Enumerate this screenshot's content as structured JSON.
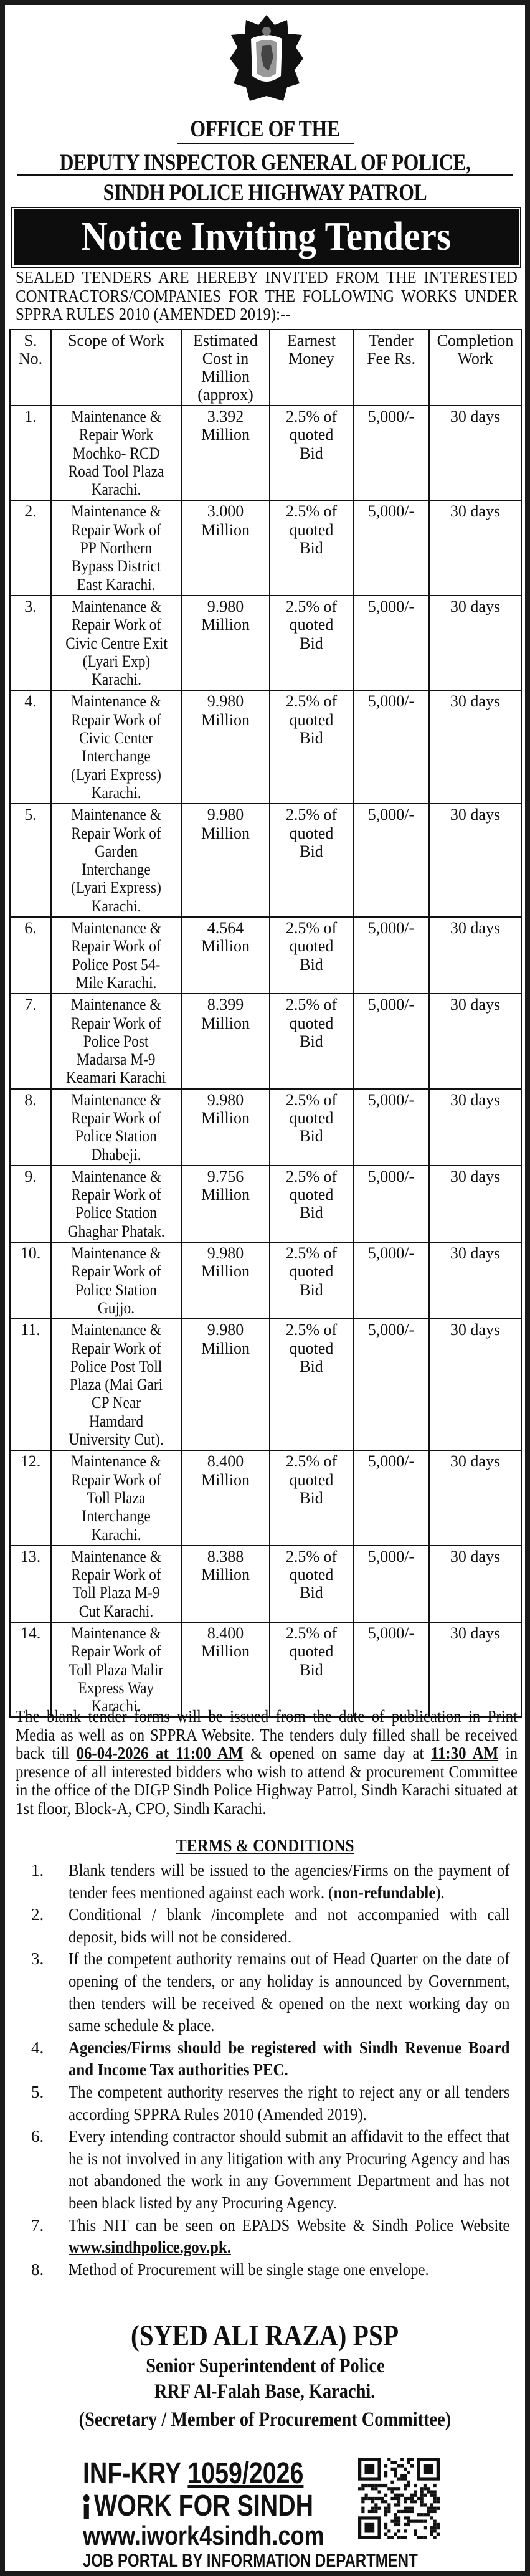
{
  "header": {
    "line1": "OFFICE OF THE",
    "line2": "DEPUTY INSPECTOR GENERAL OF POLICE,",
    "line3": "SINDH POLICE HIGHWAY PATROL",
    "banner": "Notice Inviting Tenders",
    "logo_text": "SINDH POLICE HIGHWAY"
  },
  "intro": "SEALED TENDERS ARE HEREBY INVITED FROM THE INTERESTED CONTRACTORS/COMPANIES FOR THE FOLLOWING WORKS UNDER SPPRA RULES 2010 (AMENDED 2019):--",
  "table": {
    "headers": [
      "S.\nNo.",
      "Scope of Work",
      "Estimated\nCost in\nMillion\n(approx)",
      "Earnest\nMoney",
      "Tender\nFee Rs.",
      "Completion\nWork"
    ],
    "rows": [
      {
        "no": "1.",
        "scope": "Maintenance &\nRepair Work\nMochko- RCD\nRoad Tool Plaza\nKarachi.",
        "cost": "3.392\nMillion",
        "earnest": "2.5% of\nquoted\nBid",
        "fee": "5,000/-",
        "completion": "30 days"
      },
      {
        "no": "2.",
        "scope": "Maintenance &\nRepair Work of\nPP Northern\nBypass District\nEast Karachi.",
        "cost": "3.000\nMillion",
        "earnest": "2.5% of\nquoted\nBid",
        "fee": "5,000/-",
        "completion": "30 days"
      },
      {
        "no": "3.",
        "scope": "Maintenance &\nRepair Work of\nCivic Centre Exit\n(Lyari Exp)\nKarachi.",
        "cost": "9.980\nMillion",
        "earnest": "2.5% of\nquoted\nBid",
        "fee": "5,000/-",
        "completion": "30 days"
      },
      {
        "no": "4.",
        "scope": "Maintenance &\nRepair Work of\nCivic Center\nInterchange\n(Lyari Express)\nKarachi.",
        "cost": "9.980\nMillion",
        "earnest": "2.5% of\nquoted\nBid",
        "fee": "5,000/-",
        "completion": "30 days"
      },
      {
        "no": "5.",
        "scope": "Maintenance &\nRepair Work of\nGarden\nInterchange\n(Lyari Express)\nKarachi.",
        "cost": "9.980\nMillion",
        "earnest": "2.5% of\nquoted\nBid",
        "fee": "5,000/-",
        "completion": "30 days"
      },
      {
        "no": "6.",
        "scope": "Maintenance &\nRepair Work of\nPolice Post 54-\nMile Karachi.",
        "cost": "4.564\nMillion",
        "earnest": "2.5% of\nquoted\nBid",
        "fee": "5,000/-",
        "completion": "30 days"
      },
      {
        "no": "7.",
        "scope": "Maintenance &\nRepair Work of\nPolice Post\nMadarsa M-9\nKeamari Karachi",
        "cost": "8.399\nMillion",
        "earnest": "2.5% of\nquoted\nBid",
        "fee": "5,000/-",
        "completion": "30 days"
      },
      {
        "no": "8.",
        "scope": "Maintenance &\nRepair Work of\nPolice Station\nDhabeji.",
        "cost": "9.980\nMillion",
        "earnest": "2.5% of\nquoted\nBid",
        "fee": "5,000/-",
        "completion": "30 days"
      },
      {
        "no": "9.",
        "scope": "Maintenance &\nRepair Work of\nPolice Station\nGhaghar Phatak.",
        "cost": "9.756\nMillion",
        "earnest": "2.5% of\nquoted\nBid",
        "fee": "5,000/-",
        "completion": "30 days"
      },
      {
        "no": "10.",
        "scope": "Maintenance &\nRepair Work of\nPolice Station\nGujjo.",
        "cost": "9.980\nMillion",
        "earnest": "2.5% of\nquoted\nBid",
        "fee": "5,000/-",
        "completion": "30 days"
      },
      {
        "no": "11.",
        "scope": "Maintenance &\nRepair Work of\nPolice Post Toll\nPlaza (Mai Gari\nCP Near\nHamdard\nUniversity Cut).",
        "cost": "9.980\nMillion",
        "earnest": "2.5% of\nquoted\nBid",
        "fee": "5,000/-",
        "completion": "30 days"
      },
      {
        "no": "12.",
        "scope": "Maintenance &\nRepair Work of\nToll Plaza\nInterchange\nKarachi.",
        "cost": "8.400\nMillion",
        "earnest": "2.5% of\nquoted\nBid",
        "fee": "5,000/-",
        "completion": "30 days"
      },
      {
        "no": "13.",
        "scope": "Maintenance &\nRepair Work of\nToll Plaza M-9\nCut Karachi.",
        "cost": "8.388\nMillion",
        "earnest": "2.5% of\nquoted\nBid",
        "fee": "5,000/-",
        "completion": "30 days"
      },
      {
        "no": "14.",
        "scope": "Maintenance &\nRepair Work of\nToll Plaza Malir\nExpress Way\nKarachi.",
        "cost": "8.400\nMillion",
        "earnest": "2.5% of\nquoted\nBid",
        "fee": "5,000/-",
        "completion": "30 days"
      }
    ]
  },
  "paragraph": {
    "part1": "The blank tender forms will be issued from the date of publication in Print Media as well as on SPPRA Website. The tenders duly filled shall be received back till ",
    "deadline": "06-04-2026 at 11:00 AM",
    "part2": " & opened on same day at ",
    "opening_time": "11:30 AM",
    "part3": " in presence of all interested bidders who wish to attend & procurement Committee in the office of the DIGP Sindh Police Highway Patrol, Sindh Karachi situated at 1st floor, Block-A, CPO, Sindh Karachi."
  },
  "terms": {
    "heading": "TERMS & CONDITIONS",
    "items": [
      {
        "num": "1.",
        "text": "Blank tenders will be issued to the agencies/Firms on the payment of tender fees mentioned against each work. (",
        "bold": "non-refundable",
        "after": ")."
      },
      {
        "num": "2.",
        "text": "Conditional / blank /incomplete and not accompanied with call deposit, bids will not be considered."
      },
      {
        "num": "3.",
        "text": "If the competent authority remains out of Head Quarter on the date of opening of the tenders, or any holiday is announced by Government, then tenders will be received & opened on the next working day on same schedule & place."
      },
      {
        "num": "4.",
        "bold": "Agencies/Firms should be registered with Sindh Revenue Board and Income Tax authorities PEC."
      },
      {
        "num": "5.",
        "text": "The competent authority reserves the right to reject any or all tenders according SPPRA Rules 2010 (Amended 2019)."
      },
      {
        "num": "6.",
        "text": "Every intending contractor should submit an affidavit to the effect that he is not involved in any litigation with any Procuring Agency and has not abandoned the work in any Government Department and has not been black listed by any Procuring Agency."
      },
      {
        "num": "7.",
        "text": "This NIT can be seen on EPADS Website & Sindh Police Website ",
        "link": "www.sindhpolice.gov.pk."
      },
      {
        "num": "8.",
        "text": "Method of Procurement will be single stage one envelope."
      }
    ]
  },
  "signature": {
    "name": "(SYED ALI RAZA) PSP",
    "designation": "Senior Superintendent of Police",
    "office": "RRF Al-Falah Base, Karachi.",
    "role": "(Secretary / Member of Procurement Committee)"
  },
  "footer": {
    "ref_prefix": "INF-KRY",
    "ref_number": "1059/2026",
    "slogan": "WORK FOR SINDH",
    "website": "www.iwork4sindh.com",
    "tagline": "JOB PORTAL BY INFORMATION DEPARTMENT",
    "qr_icon": "qr-code-icon"
  }
}
